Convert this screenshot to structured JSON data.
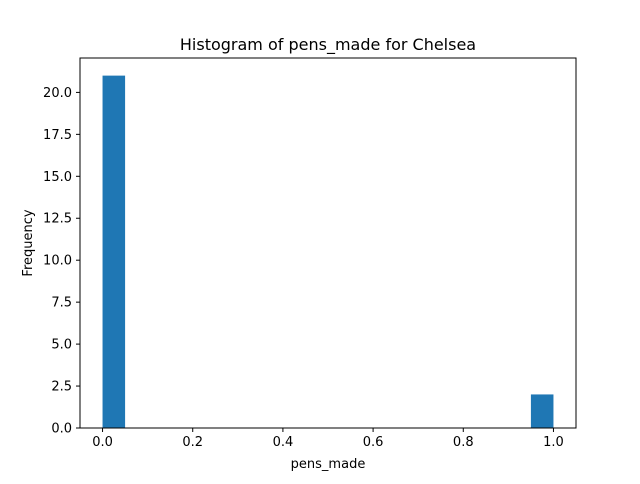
{
  "chart_data": {
    "type": "bar",
    "title": "Histogram of pens_made for Chelsea",
    "xlabel": "pens_made",
    "ylabel": "Frequency",
    "xlim": [
      -0.05,
      1.05
    ],
    "ylim": [
      0,
      22.05
    ],
    "xticks": [
      "0.0",
      "0.2",
      "0.4",
      "0.6",
      "0.8",
      "1.0"
    ],
    "xtick_values": [
      0,
      0.2,
      0.4,
      0.6,
      0.8,
      1.0
    ],
    "yticks": [
      "0.0",
      "2.5",
      "5.0",
      "7.5",
      "10.0",
      "12.5",
      "15.0",
      "17.5",
      "20.0"
    ],
    "ytick_values": [
      0,
      2.5,
      5,
      7.5,
      10,
      12.5,
      15,
      17.5,
      20
    ],
    "bins": [
      {
        "start": 0.0,
        "end": 0.05,
        "value": 21
      },
      {
        "start": 0.05,
        "end": 0.1,
        "value": 0
      },
      {
        "start": 0.1,
        "end": 0.15,
        "value": 0
      },
      {
        "start": 0.15,
        "end": 0.2,
        "value": 0
      },
      {
        "start": 0.2,
        "end": 0.25,
        "value": 0
      },
      {
        "start": 0.25,
        "end": 0.3,
        "value": 0
      },
      {
        "start": 0.3,
        "end": 0.35,
        "value": 0
      },
      {
        "start": 0.35,
        "end": 0.4,
        "value": 0
      },
      {
        "start": 0.4,
        "end": 0.45,
        "value": 0
      },
      {
        "start": 0.45,
        "end": 0.5,
        "value": 0
      },
      {
        "start": 0.5,
        "end": 0.55,
        "value": 0
      },
      {
        "start": 0.55,
        "end": 0.6,
        "value": 0
      },
      {
        "start": 0.6,
        "end": 0.65,
        "value": 0
      },
      {
        "start": 0.65,
        "end": 0.7,
        "value": 0
      },
      {
        "start": 0.7,
        "end": 0.75,
        "value": 0
      },
      {
        "start": 0.75,
        "end": 0.8,
        "value": 0
      },
      {
        "start": 0.8,
        "end": 0.85,
        "value": 0
      },
      {
        "start": 0.85,
        "end": 0.9,
        "value": 0
      },
      {
        "start": 0.9,
        "end": 0.95,
        "value": 0
      },
      {
        "start": 0.95,
        "end": 1.0,
        "value": 2
      }
    ],
    "bar_color": "#1f77b4",
    "grid": false,
    "legend": "none"
  }
}
